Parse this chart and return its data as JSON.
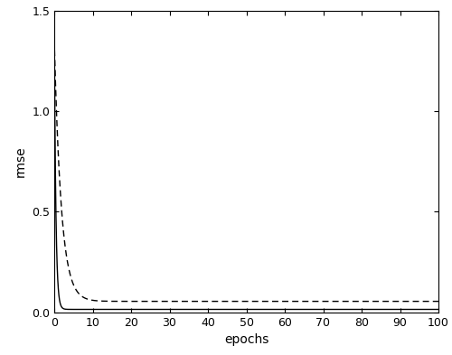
{
  "xlim": [
    0,
    100
  ],
  "ylim": [
    0,
    1.5
  ],
  "xticks": [
    0,
    10,
    20,
    30,
    40,
    50,
    60,
    70,
    80,
    90,
    100
  ],
  "yticks": [
    0,
    0.5,
    1.0,
    1.5
  ],
  "xlabel": "epochs",
  "ylabel": "rmse",
  "ekf_color": "#000000",
  "gn_color": "#000000",
  "ekf_linestyle": "-",
  "gn_linestyle": "--",
  "linewidth": 1.0,
  "background_color": "#ffffff",
  "ekf_decay": 2.5,
  "ekf_asymptote": 0.015,
  "ekf_amplitude": 1.45,
  "gn_decay": 0.55,
  "gn_asymptote": 0.055,
  "gn_amplitude": 1.3,
  "figsize": [
    5.0,
    3.93
  ],
  "dpi": 100
}
